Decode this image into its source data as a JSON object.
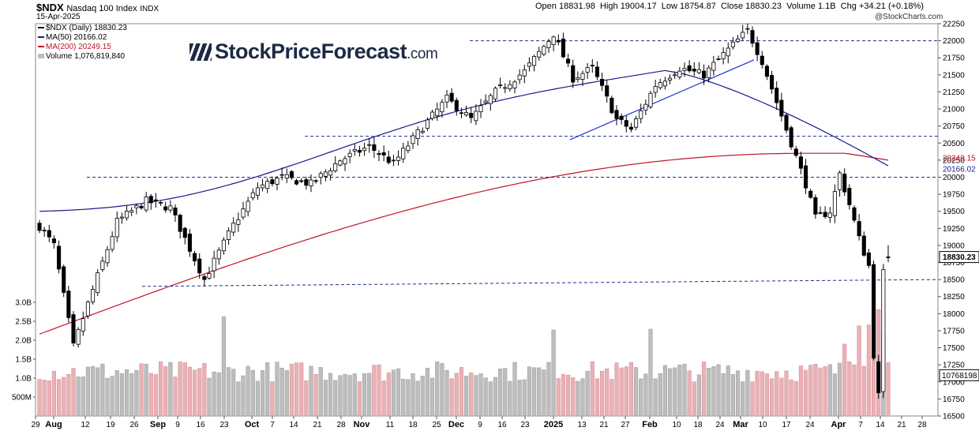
{
  "header": {
    "ticker": "$NDX",
    "name": "Nasdaq 100 Index",
    "exchange": "INDX",
    "date": "15-Apr-2025",
    "watermark": "@StockCharts.com",
    "ohlc": {
      "open_label": "Open",
      "open": "18831.98",
      "high_label": "High",
      "high": "19004.17",
      "low_label": "Low",
      "low": "18754.87",
      "close_label": "Close",
      "close": "18830.23",
      "volume_label": "Volume",
      "volume": "1.1B",
      "chg_label": "Chg",
      "chg": "+34.21 (+0.18%)"
    }
  },
  "legend": {
    "price": "$NDX (Daily) 18830.23",
    "ma50": "MA(50) 20166.02",
    "ma200": "MA(200) 20249.15",
    "volume": "Volume 1,076,819,840"
  },
  "logo": {
    "main": "StockPriceForecast",
    "domain": ".com"
  },
  "colors": {
    "up_candle": "#ffffff",
    "down_candle": "#000000",
    "ma50": "#1a1a8c",
    "ma200": "#c0142a",
    "volume_up": "#bdbdbd",
    "volume_down": "#eab1b5",
    "trendline": "#1f33cc",
    "support": "#1f2f99"
  },
  "chart_data": {
    "type": "candlestick",
    "y_axis": {
      "range": [
        16500,
        22250
      ],
      "ticks": [
        22250,
        22000,
        21750,
        21500,
        21250,
        21000,
        20750,
        20500,
        20250,
        20000,
        19750,
        19500,
        19250,
        19000,
        18750,
        18500,
        18250,
        18000,
        17750,
        17500,
        17250,
        17000,
        16750,
        16500
      ],
      "price_labels": [
        {
          "text": "20249.15",
          "value": 20249.15
        },
        {
          "text": "20166.02",
          "value": 20166.02
        },
        {
          "text": "18830.23",
          "value": 18830.23,
          "boxed": true
        }
      ]
    },
    "volume_axis": {
      "ticks": [
        "3.0B",
        "2.5B",
        "2.0B",
        "1.5B",
        "1.0B",
        "500M"
      ],
      "tick_values": [
        3.0,
        2.5,
        2.0,
        1.5,
        1.0,
        0.5
      ],
      "right_label": "10768198"
    },
    "x_axis": {
      "labels": [
        "29",
        "Aug",
        "12",
        "19",
        "26",
        "Sep",
        "9",
        "16",
        "23",
        "Oct",
        "7",
        "14",
        "21",
        "28",
        "Nov",
        "11",
        "18",
        "25",
        "Dec",
        "9",
        "16",
        "23",
        "2025",
        "13",
        "21",
        "27",
        "Feb",
        "10",
        "18",
        "24",
        "Mar",
        "10",
        "17",
        "24",
        "Apr",
        "7",
        "14",
        "21",
        "28"
      ],
      "bold": [
        "Aug",
        "Sep",
        "Oct",
        "Nov",
        "Dec",
        "2025",
        "Feb",
        "Mar",
        "Apr"
      ]
    },
    "horizontal_levels": [
      22000,
      20600,
      20000
    ],
    "support_line": {
      "from": 18400,
      "to": 18500
    },
    "trend_line": {
      "from": 20550,
      "to": 21720
    },
    "anchors": {
      "start_close": 19280,
      "aug_low": 17400,
      "sep_high": 19700,
      "sep_low": 18400,
      "oct_high": 20600,
      "nov_high": 21200,
      "dec_high": 22133,
      "jan_low": 20600,
      "feb_high": 22222,
      "mar_high": 20300,
      "mar_low": 19150,
      "apr_low": 16542,
      "last_close": 18830.23
    },
    "ma50": {
      "start": 19500,
      "peak": 21550,
      "end": 20166.02
    },
    "ma200": {
      "start": 17700,
      "peak": 20350,
      "end": 20249.15
    }
  }
}
